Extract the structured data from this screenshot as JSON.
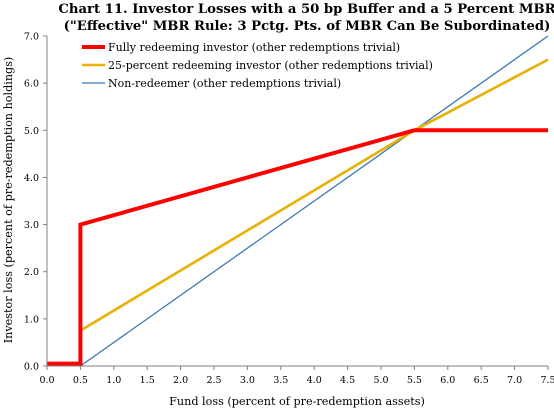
{
  "chart_data": {
    "type": "line",
    "title": "Chart 11. Investor Losses with a 50 bp Buffer and a 5 Percent MBR",
    "subtitle": "(\"Effective\" MBR Rule:  3 Pctg. Pts. of MBR Can Be Subordinated)",
    "xlabel": "Fund loss (percent of pre-redemption assets)",
    "ylabel": "Investor loss (percent of pre-redemption holdings)",
    "xlim": [
      0,
      7.5
    ],
    "ylim": [
      0,
      7.0
    ],
    "xticks": [
      "0.0",
      "0.5",
      "1.0",
      "1.5",
      "2.0",
      "2.5",
      "3.0",
      "3.5",
      "4.0",
      "4.5",
      "5.0",
      "5.5",
      "6.0",
      "6.5",
      "7.0",
      "7.5"
    ],
    "yticks": [
      "0.0",
      "1.0",
      "2.0",
      "3.0",
      "4.0",
      "5.0",
      "6.0",
      "7.0"
    ],
    "grid": false,
    "legend_position": "top-left",
    "series": [
      {
        "name": "Fully redeeming investor (other redemptions trivial)",
        "color": "#ff0000",
        "x": [
          0,
          0.5,
          0.5,
          5.5,
          7.5
        ],
        "y": [
          0.05,
          0.05,
          3.0,
          5.0,
          5.0
        ]
      },
      {
        "name": "25-percent redeeming investor (other redemptions trivial)",
        "color": "#e8b000",
        "x": [
          0,
          0.5,
          0.5,
          5.5,
          7.5
        ],
        "y": [
          0.05,
          0.05,
          0.75,
          5.0,
          6.5
        ]
      },
      {
        "name": "Non-redeemer (other redemptions trivial)",
        "color": "#3c78b4",
        "x": [
          0.5,
          7.5
        ],
        "y": [
          0.0,
          7.0
        ]
      }
    ]
  }
}
